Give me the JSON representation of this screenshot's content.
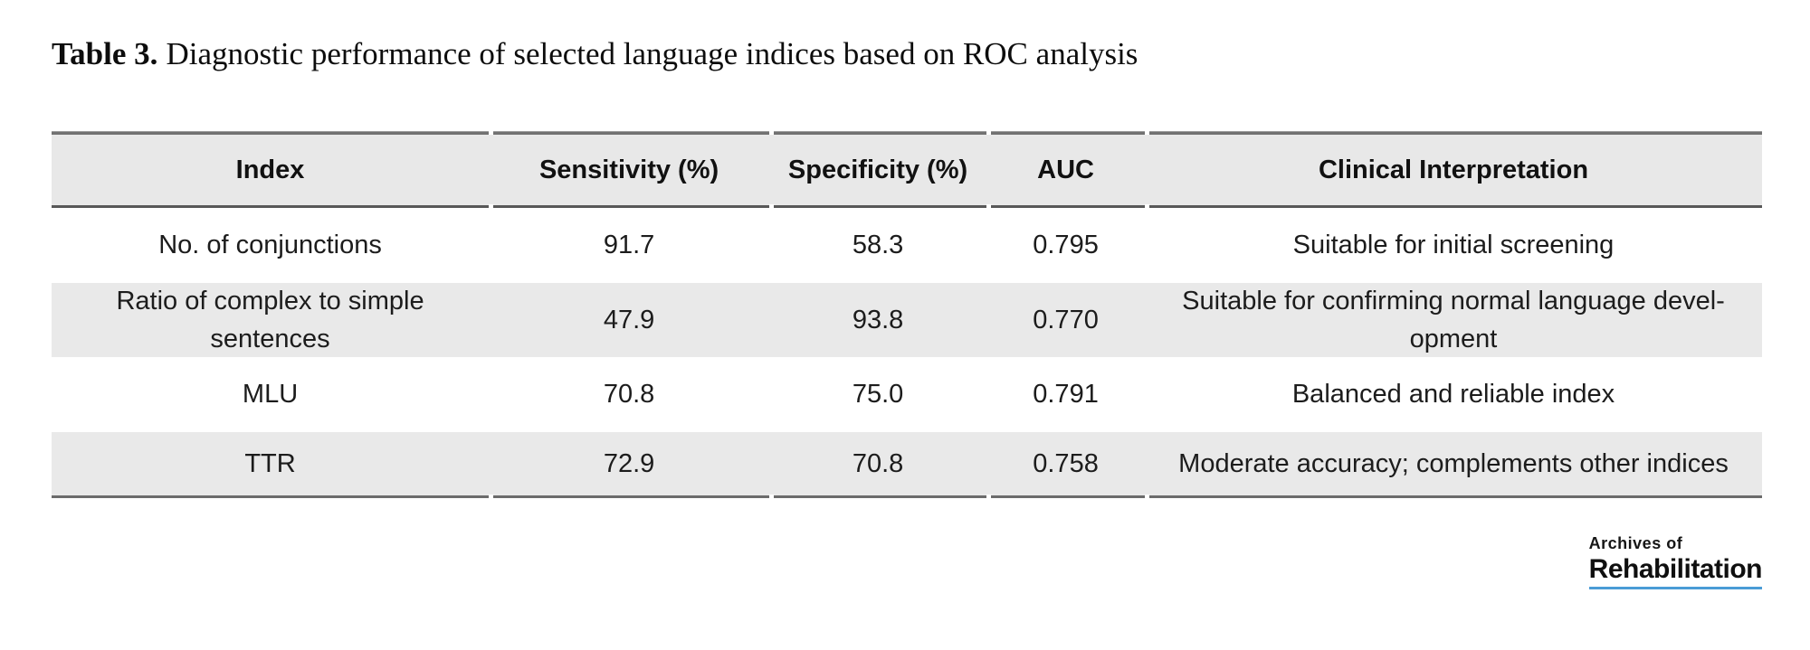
{
  "title": {
    "prefix": "Table 3.",
    "text": "Diagnostic performance of selected language indices based on ROC analysis"
  },
  "table": {
    "headers": [
      "Index",
      "Sensitivity (%)",
      "Specificity (%)",
      "AUC",
      "Clinical Interpretation"
    ],
    "rows": [
      [
        "No. of conjunctions",
        "91.7",
        "58.3",
        "0.795",
        "Suitable for initial screening"
      ],
      [
        "Ratio of complex to simple\nsentences",
        "47.9",
        "93.8",
        "0.770",
        "Suitable for confirming normal language devel-\nopment"
      ],
      [
        "MLU",
        "70.8",
        "75.0",
        "0.791",
        "Balanced and reliable index"
      ],
      [
        "TTR",
        "72.9",
        "70.8",
        "0.758",
        "Moderate accuracy; complements other indices"
      ]
    ]
  },
  "logo": {
    "line1": "Archives of",
    "line2": "Rehabilitation"
  },
  "colors": {
    "row_shade": "#e9e9e9",
    "header_shade": "#e8e8e8",
    "border": "#6b6b6b",
    "logo_underline": "#4a9cd6",
    "text": "#1c1c1c"
  }
}
